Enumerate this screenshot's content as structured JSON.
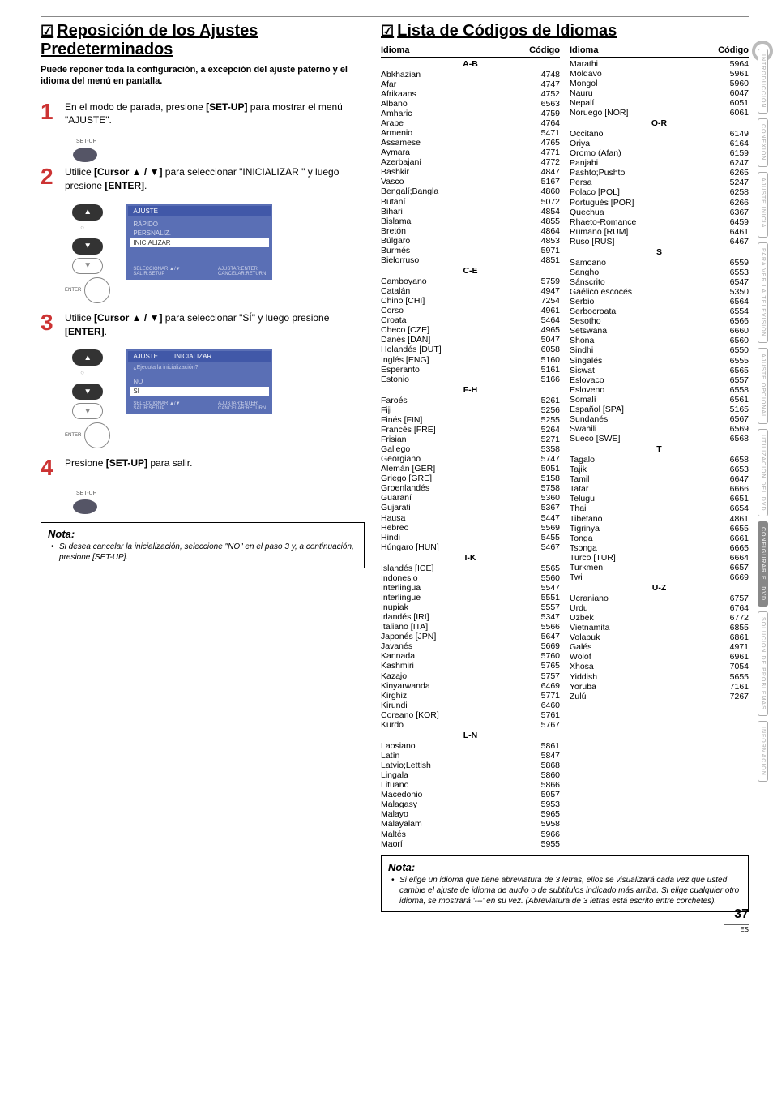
{
  "page_number": "37",
  "es_label": "ES",
  "side_tabs": [
    "INTRODUCCIÓN",
    "CONEXIÓN",
    "AJUSTE INICIAL",
    "PARA VER LA TELEVISIÓN",
    "AJUSTE OPCIONAL",
    "UTILIZACIÓN DEL DVD",
    "CONFIGURAR EL DVD",
    "SOLUCIÓN DE PROBLEMAS",
    "INFORMACIÓN"
  ],
  "active_tab_index": 6,
  "left": {
    "title": "Reposición de los Ajustes Predeterminados",
    "intro": "Puede reponer toda la configuración, a excepción del ajuste paterno y el idioma del menú en pantalla.",
    "steps": [
      {
        "num": "1",
        "text_pre": "En el modo de parada, presione ",
        "bold": "[SET-UP]",
        "text_post": " para mostrar el menú \"AJUSTE\"."
      },
      {
        "num": "2",
        "text_pre": "Utilice ",
        "bold": "[Cursor ▲ / ▼]",
        "text_mid": " para seleccionar \"INICIALIZAR \" y luego presione ",
        "bold2": "[ENTER]",
        "text_post": "."
      },
      {
        "num": "3",
        "text_pre": "Utilice ",
        "bold": "[Cursor ▲ / ▼]",
        "text_mid": " para seleccionar \"SÍ\" y luego presione ",
        "bold2": "[ENTER]",
        "text_post": "."
      },
      {
        "num": "4",
        "text_pre": "Presione ",
        "bold": "[SET-UP]",
        "text_post": " para salir."
      }
    ],
    "setup_label": "SET-UP",
    "enter_label": "ENTER",
    "menu1": {
      "header": "AJUSTE",
      "items": [
        "RÁPIDO",
        "PERSNALIZ."
      ],
      "selected": "INICIALIZAR",
      "footer_left": "SELECCIONAR ▲/▼\nSALIR:SETUP",
      "footer_right": "AJUSTAR:ENTER\nCANCELAR:RETURN"
    },
    "menu2": {
      "header_left": "AJUSTE",
      "header_right": "INICIALIZAR",
      "prompt": "¿Ejecuta la inicialización?",
      "no": "NO",
      "si": "SÍ",
      "footer_left": "SELECCIONAR ▲/▼\nSALIR:SETUP",
      "footer_right": "AJUSTAR:ENTER\nCANCELAR:RETURN"
    },
    "nota": {
      "title": "Nota:",
      "text": "Si desea cancelar la inicialización, seleccione \"NO\" en el paso 3 y, a continuación, presione [SET-UP]."
    }
  },
  "right": {
    "title": "Lista de Códigos de Idiomas",
    "col_headers": {
      "name": "Idioma",
      "code": "Código"
    },
    "col1": [
      {
        "sec": "A-B"
      },
      {
        "n": "Abkhazian",
        "c": "4748"
      },
      {
        "n": "Afar",
        "c": "4747"
      },
      {
        "n": "Afrikaans",
        "c": "4752"
      },
      {
        "n": "Albano",
        "c": "6563"
      },
      {
        "n": "Amharic",
        "c": "4759"
      },
      {
        "n": "Arabe",
        "c": "4764"
      },
      {
        "n": "Armenio",
        "c": "5471"
      },
      {
        "n": "Assamese",
        "c": "4765"
      },
      {
        "n": "Aymara",
        "c": "4771"
      },
      {
        "n": "Azerbajaní",
        "c": "4772"
      },
      {
        "n": "Bashkir",
        "c": "4847"
      },
      {
        "n": "Vasco",
        "c": "5167"
      },
      {
        "n": "Bengalí;Bangla",
        "c": "4860"
      },
      {
        "n": "Butaní",
        "c": "5072"
      },
      {
        "n": "Bihari",
        "c": "4854"
      },
      {
        "n": "Bislama",
        "c": "4855"
      },
      {
        "n": "Bretón",
        "c": "4864"
      },
      {
        "n": "Búlgaro",
        "c": "4853"
      },
      {
        "n": "Burmés",
        "c": "5971"
      },
      {
        "n": "Bielorruso",
        "c": "4851"
      },
      {
        "sec": "C-E"
      },
      {
        "n": "Camboyano",
        "c": "5759"
      },
      {
        "n": "Catalán",
        "c": "4947"
      },
      {
        "n": "Chino [CHI]",
        "c": "7254"
      },
      {
        "n": "Corso",
        "c": "4961"
      },
      {
        "n": "Croata",
        "c": "5464"
      },
      {
        "n": "Checo [CZE]",
        "c": "4965"
      },
      {
        "n": "Danés [DAN]",
        "c": "5047"
      },
      {
        "n": "Holandés [DUT]",
        "c": "6058"
      },
      {
        "n": "Inglés [ENG]",
        "c": "5160"
      },
      {
        "n": "Esperanto",
        "c": "5161"
      },
      {
        "n": "Estonio",
        "c": "5166"
      },
      {
        "sec": "F-H"
      },
      {
        "n": "Faroés",
        "c": "5261"
      },
      {
        "n": "Fiji",
        "c": "5256"
      },
      {
        "n": "Finés [FIN]",
        "c": "5255"
      },
      {
        "n": "Francés [FRE]",
        "c": "5264"
      },
      {
        "n": "Frisian",
        "c": "5271"
      },
      {
        "n": "Gallego",
        "c": "5358"
      },
      {
        "n": "Georgiano",
        "c": "5747"
      },
      {
        "n": "Alemán [GER]",
        "c": "5051"
      },
      {
        "n": "Griego [GRE]",
        "c": "5158"
      },
      {
        "n": "Groenlandés",
        "c": "5758"
      },
      {
        "n": "Guaraní",
        "c": "5360"
      },
      {
        "n": "Gujarati",
        "c": "5367"
      },
      {
        "n": "Hausa",
        "c": "5447"
      },
      {
        "n": "Hebreo",
        "c": "5569"
      },
      {
        "n": "Hindi",
        "c": "5455"
      },
      {
        "n": "Húngaro [HUN]",
        "c": "5467"
      },
      {
        "sec": "I-K"
      },
      {
        "n": "Islandés [ICE]",
        "c": "5565"
      },
      {
        "n": "Indonesio",
        "c": "5560"
      },
      {
        "n": "Interlingua",
        "c": "5547"
      },
      {
        "n": "Interlingue",
        "c": "5551"
      },
      {
        "n": "Inupiak",
        "c": "5557"
      },
      {
        "n": "Irlandés [IRI]",
        "c": "5347"
      },
      {
        "n": "Italiano [ITA]",
        "c": "5566"
      },
      {
        "n": "Japonés [JPN]",
        "c": "5647"
      },
      {
        "n": "Javanés",
        "c": "5669"
      },
      {
        "n": "Kannada",
        "c": "5760"
      },
      {
        "n": "Kashmiri",
        "c": "5765"
      },
      {
        "n": "Kazajo",
        "c": "5757"
      },
      {
        "n": "Kinyarwanda",
        "c": "6469"
      },
      {
        "n": "Kirghiz",
        "c": "5771"
      },
      {
        "n": "Kirundi",
        "c": "6460"
      },
      {
        "n": "Coreano [KOR]",
        "c": "5761"
      },
      {
        "n": "Kurdo",
        "c": "5767"
      },
      {
        "sec": "L-N"
      },
      {
        "n": "Laosiano",
        "c": "5861"
      },
      {
        "n": "Latín",
        "c": "5847"
      },
      {
        "n": "Latvio;Lettish",
        "c": "5868"
      },
      {
        "n": "Lingala",
        "c": "5860"
      },
      {
        "n": "Lituano",
        "c": "5866"
      },
      {
        "n": "Macedonio",
        "c": "5957"
      },
      {
        "n": "Malagasy",
        "c": "5953"
      },
      {
        "n": "Malayo",
        "c": "5965"
      },
      {
        "n": "Malayalam",
        "c": "5958"
      },
      {
        "n": "Maltés",
        "c": "5966"
      },
      {
        "n": "Maorí",
        "c": "5955"
      }
    ],
    "col2": [
      {
        "n": "Marathi",
        "c": "5964"
      },
      {
        "n": "Moldavo",
        "c": "5961"
      },
      {
        "n": "Mongol",
        "c": "5960"
      },
      {
        "n": "Nauru",
        "c": "6047"
      },
      {
        "n": "Nepalí",
        "c": "6051"
      },
      {
        "n": "Noruego [NOR]",
        "c": "6061"
      },
      {
        "sec": "O-R"
      },
      {
        "n": "Occitano",
        "c": "6149"
      },
      {
        "n": "Oriya",
        "c": "6164"
      },
      {
        "n": "Oromo (Afan)",
        "c": "6159"
      },
      {
        "n": "Panjabi",
        "c": "6247"
      },
      {
        "n": "Pashto;Pushto",
        "c": "6265"
      },
      {
        "n": "Persa",
        "c": "5247"
      },
      {
        "n": "Polaco [POL]",
        "c": "6258"
      },
      {
        "n": "Portugués [POR]",
        "c": "6266"
      },
      {
        "n": "Quechua",
        "c": "6367"
      },
      {
        "n": "Rhaeto-Romance",
        "c": "6459"
      },
      {
        "n": "Rumano [RUM]",
        "c": "6461"
      },
      {
        "n": "Ruso [RUS]",
        "c": "6467"
      },
      {
        "sec": "S"
      },
      {
        "n": "Samoano",
        "c": "6559"
      },
      {
        "n": "Sangho",
        "c": "6553"
      },
      {
        "n": "Sánscrito",
        "c": "6547"
      },
      {
        "n": "Gaélico escocés",
        "c": "5350"
      },
      {
        "n": "Serbio",
        "c": "6564"
      },
      {
        "n": "Serbocroata",
        "c": "6554"
      },
      {
        "n": "Sesotho",
        "c": "6566"
      },
      {
        "n": "Setswana",
        "c": "6660"
      },
      {
        "n": "Shona",
        "c": "6560"
      },
      {
        "n": "Sindhi",
        "c": "6550"
      },
      {
        "n": "Singalés",
        "c": "6555"
      },
      {
        "n": "Siswat",
        "c": "6565"
      },
      {
        "n": "Eslovaco",
        "c": "6557"
      },
      {
        "n": "Esloveno",
        "c": "6558"
      },
      {
        "n": "Somalí",
        "c": "6561"
      },
      {
        "n": "Español [SPA]",
        "c": "5165"
      },
      {
        "n": "Sundanés",
        "c": "6567"
      },
      {
        "n": "Swahili",
        "c": "6569"
      },
      {
        "n": "Sueco [SWE]",
        "c": "6568"
      },
      {
        "sec": "T"
      },
      {
        "n": "Tagalo",
        "c": "6658"
      },
      {
        "n": "Tajik",
        "c": "6653"
      },
      {
        "n": "Tamil",
        "c": "6647"
      },
      {
        "n": "Tatar",
        "c": "6666"
      },
      {
        "n": "Telugu",
        "c": "6651"
      },
      {
        "n": "Thai",
        "c": "6654"
      },
      {
        "n": "Tibetano",
        "c": "4861"
      },
      {
        "n": "Tigrinya",
        "c": "6655"
      },
      {
        "n": "Tonga",
        "c": "6661"
      },
      {
        "n": "Tsonga",
        "c": "6665"
      },
      {
        "n": "Turco [TUR]",
        "c": "6664"
      },
      {
        "n": "Turkmen",
        "c": "6657"
      },
      {
        "n": "Twi",
        "c": "6669"
      },
      {
        "sec": "U-Z"
      },
      {
        "n": "Ucraniano",
        "c": "6757"
      },
      {
        "n": "Urdu",
        "c": "6764"
      },
      {
        "n": "Uzbek",
        "c": "6772"
      },
      {
        "n": "Vietnamita",
        "c": "6855"
      },
      {
        "n": "Volapuk",
        "c": "6861"
      },
      {
        "n": "Galés",
        "c": "4971"
      },
      {
        "n": "Wolof",
        "c": "6961"
      },
      {
        "n": "Xhosa",
        "c": "7054"
      },
      {
        "n": "Yiddish",
        "c": "5655"
      },
      {
        "n": "Yoruba",
        "c": "7161"
      },
      {
        "n": "Zulú",
        "c": "7267"
      }
    ],
    "nota": {
      "title": "Nota:",
      "text": "Si elige un idioma que tiene abreviatura de 3 letras, ellos se visualizará cada vez que usted cambie el ajuste de idioma de audio o de subtítulos indicado más arriba. Si elige cualquier otro idioma, se mostrará '---' en su vez. (Abreviatura de 3 letras está escrito entre corchetes)."
    }
  }
}
